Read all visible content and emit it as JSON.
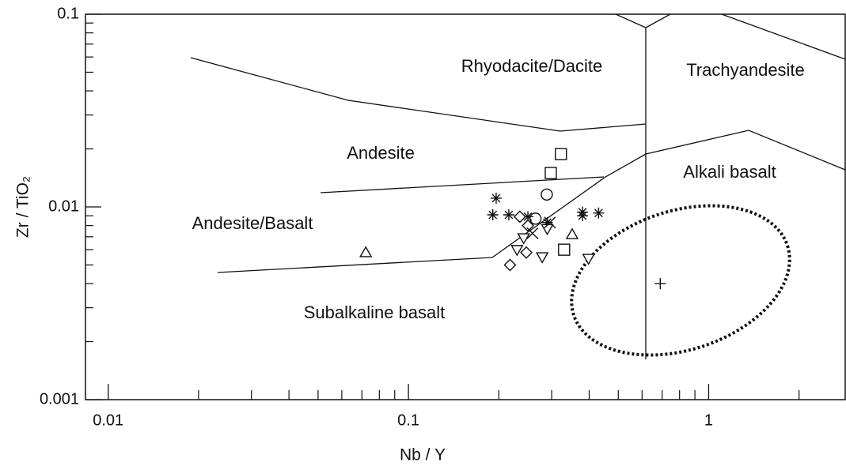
{
  "chart_data": {
    "type": "scatter",
    "x_label": "Nb / Y",
    "y_label": "Zr / TiO₂",
    "log_x": true,
    "log_y": true,
    "xlim": [
      0.0084,
      2.85
    ],
    "ylim": [
      0.001,
      0.1
    ],
    "xticks": [
      0.01,
      0.1,
      1
    ],
    "x_minor_ticks": [
      0.02,
      0.03,
      0.04,
      0.05,
      0.06,
      0.07,
      0.08,
      0.09,
      0.2,
      0.3,
      0.4,
      0.5,
      0.6,
      0.7,
      0.8,
      0.9,
      2
    ],
    "yticks": [
      0.001,
      0.01,
      0.1
    ],
    "y_minor_ticks": [
      0.002,
      0.003,
      0.004,
      0.005,
      0.006,
      0.007,
      0.008,
      0.009,
      0.02,
      0.03,
      0.04,
      0.05,
      0.06,
      0.07,
      0.08,
      0.09
    ],
    "annotations": [
      "Rhyodacite/Dacite",
      "Trachyandesite",
      "Andesite",
      "Alkali basalt",
      "Andesite/Basalt",
      "Subalkaline basalt"
    ],
    "series": [
      {
        "marker": "triangle",
        "color": "#111111",
        "x": [
          0.0721,
          0.351
        ],
        "values": [
          0.0058,
          0.0072
        ]
      },
      {
        "marker": "square",
        "color": "#111111",
        "x": [
          0.322,
          0.298,
          0.33
        ],
        "values": [
          0.0188,
          0.015,
          0.006
        ]
      },
      {
        "marker": "circle",
        "color": "#111111",
        "x": [
          0.289,
          0.265
        ],
        "values": [
          0.0116,
          0.0087
        ]
      },
      {
        "marker": "asterisk",
        "color": "#111111",
        "x": [
          0.191,
          0.196,
          0.216,
          0.25,
          0.29,
          0.38,
          0.38,
          0.43
        ],
        "values": [
          0.0091,
          0.0111,
          0.0091,
          0.0089,
          0.0083,
          0.0094,
          0.009,
          0.0093
        ]
      },
      {
        "marker": "diamond",
        "color": "#111111",
        "x": [
          0.235,
          0.25,
          0.247,
          0.218
        ],
        "values": [
          0.0089,
          0.008,
          0.0058,
          0.005
        ]
      },
      {
        "marker": "triangle-down",
        "color": "#111111",
        "x": [
          0.242,
          0.23,
          0.29,
          0.279,
          0.398
        ],
        "values": [
          0.0069,
          0.006,
          0.0077,
          0.0055,
          0.0054
        ]
      },
      {
        "marker": "x",
        "color": "#111111",
        "x": [
          0.259,
          0.296
        ],
        "values": [
          0.0073,
          0.0083
        ]
      },
      {
        "marker": "plus",
        "color": "#111111",
        "x": [
          0.69
        ],
        "values": [
          0.004
        ]
      }
    ]
  }
}
